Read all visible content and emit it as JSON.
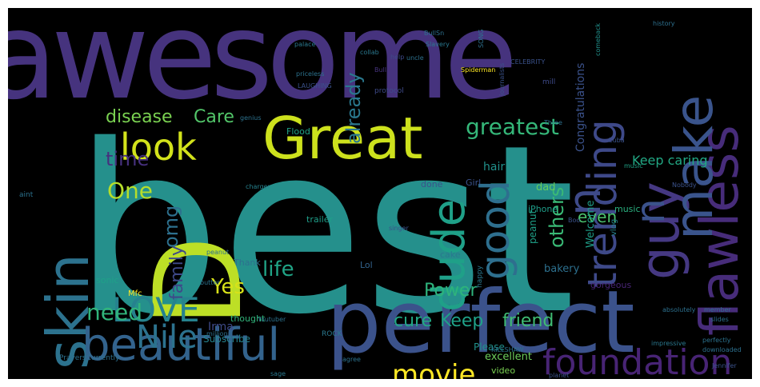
{
  "image": {
    "type": "word-cloud",
    "background": "#000000",
    "frame": "#ffffff",
    "palette": [
      "#440154",
      "#3b528b",
      "#21918c",
      "#5ec962",
      "#fde725"
    ]
  },
  "words": [
    {
      "text": "awesome",
      "color": "#46337e"
    },
    {
      "text": "best",
      "color": "#25908c"
    },
    {
      "text": "perfect",
      "color": "#3b528b"
    },
    {
      "text": "Great",
      "color": "#cde11d"
    },
    {
      "text": "skin",
      "color": "#2c728e"
    },
    {
      "text": "beautiful",
      "color": "#33638d"
    },
    {
      "text": "D",
      "color": "#bddf26"
    },
    {
      "text": "look",
      "color": "#d2e21b"
    },
    {
      "text": "flawless",
      "color": "#472c7a"
    },
    {
      "text": "guy",
      "color": "#453882"
    },
    {
      "text": "make",
      "color": "#3a548c"
    },
    {
      "text": "trending",
      "color": "#3e4989"
    },
    {
      "text": "good",
      "color": "#2e6f8e"
    },
    {
      "text": "dude",
      "color": "#1fa088"
    },
    {
      "text": "LOVE",
      "color": "#26828e"
    },
    {
      "text": "foundation",
      "color": "#482475"
    },
    {
      "text": "Nile",
      "color": "#2c728e"
    },
    {
      "text": "need",
      "color": "#31b57b"
    },
    {
      "text": "movie",
      "color": "#fde725"
    },
    {
      "text": "n",
      "color": "#3e4a89"
    },
    {
      "text": "n",
      "color": "#3b528b"
    },
    {
      "text": "already",
      "color": "#2a788e"
    },
    {
      "text": "greatest",
      "color": "#35b779"
    },
    {
      "text": "disease",
      "color": "#7ad151"
    },
    {
      "text": "Care",
      "color": "#52c569"
    },
    {
      "text": "time",
      "color": "#46307e"
    },
    {
      "text": "One",
      "color": "#b5de2b"
    },
    {
      "text": "omg",
      "color": "#2d708e"
    },
    {
      "text": "family",
      "color": "#3e4989"
    },
    {
      "text": "life",
      "color": "#20a486"
    },
    {
      "text": "Yes",
      "color": "#d8e219"
    },
    {
      "text": "Power",
      "color": "#2eb37c"
    },
    {
      "text": "cure",
      "color": "#22a884"
    },
    {
      "text": "Keep",
      "color": "#1fa188"
    },
    {
      "text": "friend",
      "color": "#3fbc73"
    },
    {
      "text": "others",
      "color": "#3aba76"
    },
    {
      "text": "even",
      "color": "#4ac16d"
    },
    {
      "text": "Keep caring",
      "color": "#22a884"
    },
    {
      "text": "Congratulations",
      "color": "#3b528b"
    },
    {
      "text": "Welcome",
      "color": "#1f9e89"
    },
    {
      "text": "hair",
      "color": "#21918c"
    },
    {
      "text": "dad",
      "color": "#65cb5e"
    },
    {
      "text": "Thank",
      "color": "#2d708e"
    },
    {
      "text": "trailer",
      "color": "#1f9e89"
    },
    {
      "text": "excellent",
      "color": "#6ccd5a"
    },
    {
      "text": "Please",
      "color": "#21918c"
    },
    {
      "text": "video",
      "color": "#7ad151"
    },
    {
      "text": "Subscribe",
      "color": "#26828e"
    },
    {
      "text": "iPhone",
      "color": "#1f9e89"
    },
    {
      "text": "music",
      "color": "#2ab07f"
    },
    {
      "text": "vlog",
      "color": "#26828e"
    },
    {
      "text": "Lol",
      "color": "#33638d"
    },
    {
      "text": "sonic",
      "color": "#1fa188"
    },
    {
      "text": "Irma",
      "color": "#3e4a89"
    },
    {
      "text": "thought",
      "color": "#31b57b"
    },
    {
      "text": "peanut",
      "color": "#1fa088"
    },
    {
      "text": "bakery",
      "color": "#2d708e"
    },
    {
      "text": "cake",
      "color": "#2a788e"
    },
    {
      "text": "done",
      "color": "#3b528b"
    },
    {
      "text": "Flood",
      "color": "#20a386"
    },
    {
      "text": "Girl",
      "color": "#3b528b"
    },
    {
      "text": "Spiderman",
      "color": "#fde725"
    },
    {
      "text": "CELEBRITY",
      "color": "#3b528b"
    },
    {
      "text": "Slavery",
      "color": "#2a788e"
    },
    {
      "text": "history",
      "color": "#2d708e"
    },
    {
      "text": "comeback",
      "color": "#21918c"
    },
    {
      "text": "music",
      "color": "#20a386"
    },
    {
      "text": "ROCK",
      "color": "#2a788e"
    },
    {
      "text": "gorgeous",
      "color": "#482475"
    },
    {
      "text": "Mfc",
      "color": "#fde725"
    },
    {
      "text": "perfectly",
      "color": "#2c728e"
    },
    {
      "text": "downloaded",
      "color": "#2d708e"
    },
    {
      "text": "happy",
      "color": "#2a788e"
    },
    {
      "text": "singer",
      "color": "#3b528b"
    },
    {
      "text": "charger",
      "color": "#26828e"
    },
    {
      "text": "aint",
      "color": "#2c728e"
    },
    {
      "text": "BullSn",
      "color": "#2d708e"
    },
    {
      "text": "SONG",
      "color": "#2d708e"
    },
    {
      "text": "protocol",
      "color": "#3e4a89"
    },
    {
      "text": "LAUGHING",
      "color": "#3b528b"
    },
    {
      "text": "Bulls",
      "color": "#46337e"
    },
    {
      "text": "palace",
      "color": "#2a788e"
    },
    {
      "text": "mill",
      "color": "#3e4a89"
    },
    {
      "text": "uncle",
      "color": "#2d708e"
    },
    {
      "text": "help",
      "color": "#3e4a89"
    },
    {
      "text": "journalists",
      "color": "#3b528b"
    },
    {
      "text": "priceless",
      "color": "#2c728e"
    },
    {
      "text": "collab",
      "color": "#2a788e"
    },
    {
      "text": "Cuba",
      "color": "#3b528b"
    },
    {
      "text": "Three",
      "color": "#2d708e"
    },
    {
      "text": "peanut",
      "color": "#2d708e"
    },
    {
      "text": "genius",
      "color": "#2c728e"
    },
    {
      "text": "Boo",
      "color": "#3b528b"
    },
    {
      "text": "Nobody",
      "color": "#3b528b"
    },
    {
      "text": "butter",
      "color": "#2c728e"
    },
    {
      "text": "million",
      "color": "#2d708e"
    },
    {
      "text": "agree",
      "color": "#2c728e"
    },
    {
      "text": "sage",
      "color": "#2a788e"
    },
    {
      "text": "PrayersCurrently",
      "color": "#2d708e"
    },
    {
      "text": "Youtuber",
      "color": "#2c728e"
    },
    {
      "text": "planet",
      "color": "#3b528b"
    },
    {
      "text": "KILLSHAW",
      "color": "#2c728e"
    },
    {
      "text": "absolutely",
      "color": "#2d708e"
    },
    {
      "text": "impressive",
      "color": "#2a788e"
    },
    {
      "text": "member",
      "color": "#2c728e"
    },
    {
      "text": "slides",
      "color": "#2d708e"
    },
    {
      "text": "Jennifer",
      "color": "#3b528b"
    }
  ]
}
